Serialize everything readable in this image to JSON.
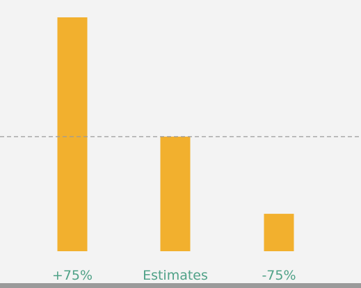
{
  "chart_data": {
    "type": "bar",
    "categories": [
      "+75%",
      "Estimates",
      "-75%"
    ],
    "values": [
      100,
      49,
      16
    ],
    "ylim": [
      0,
      100
    ],
    "reference_line": 49,
    "grid": false,
    "colors": {
      "bar": "#f2b02e",
      "label": "#4fa187",
      "reference_line": "#9a9a9a",
      "background": "#f3f3f3"
    }
  }
}
